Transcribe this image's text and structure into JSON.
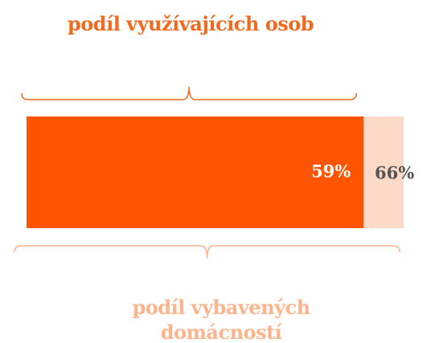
{
  "chart_data": {
    "type": "bar",
    "series": [
      {
        "name": "podíl vybavených domácností",
        "color": "#fddac8",
        "values": [
          66
        ],
        "value_labels": [
          "66%"
        ]
      },
      {
        "name": "podíl využívajících osob",
        "color": "#ff5400",
        "values": [
          59
        ],
        "value_labels": [
          "59%"
        ]
      }
    ]
  }
}
